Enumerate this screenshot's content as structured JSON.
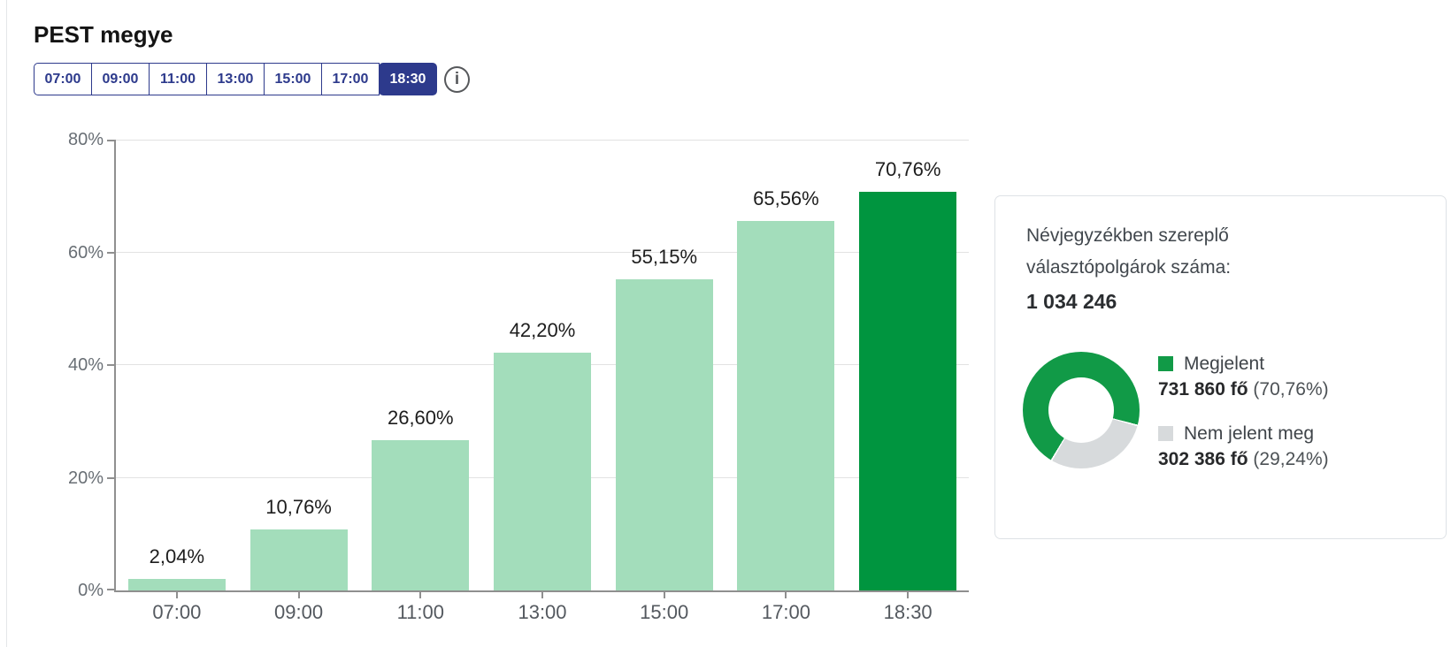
{
  "page": {
    "title": "PEST megye"
  },
  "time_selector": {
    "options": [
      "07:00",
      "09:00",
      "11:00",
      "13:00",
      "15:00",
      "17:00",
      "18:30"
    ],
    "selected": "18:30"
  },
  "info_icon": {
    "name": "info-icon",
    "glyph": "i"
  },
  "chart_data": [
    {
      "type": "bar",
      "title": "",
      "xlabel": "",
      "ylabel": "",
      "categories": [
        "07:00",
        "09:00",
        "11:00",
        "13:00",
        "15:00",
        "17:00",
        "18:30"
      ],
      "values": [
        2.04,
        10.76,
        26.6,
        42.2,
        55.15,
        65.56,
        70.76
      ],
      "value_labels": [
        "2,04%",
        "10,76%",
        "26,60%",
        "42,20%",
        "55,15%",
        "65,56%",
        "70,76%"
      ],
      "ylim": [
        0,
        80
      ],
      "y_ticks": [
        {
          "v": 0,
          "label": "0%"
        },
        {
          "v": 20,
          "label": "20%"
        },
        {
          "v": 40,
          "label": "40%"
        },
        {
          "v": 60,
          "label": "60%"
        },
        {
          "v": 80,
          "label": "80%"
        }
      ],
      "grid": true,
      "legend_position": "none",
      "colors": {
        "default": "#a3ddbb",
        "highlight": "#00953f"
      },
      "highlight_category": "18:30"
    },
    {
      "type": "pie",
      "donut": true,
      "labels": [
        "Megjelent",
        "Nem jelent meg"
      ],
      "values": [
        70.76,
        29.24
      ],
      "colors": [
        "#119a47",
        "#d7dadc"
      ],
      "legend_position": "right"
    }
  ],
  "summary_card": {
    "registered_line1": "Névjegyzékben szereplő",
    "registered_line2": "választópolgárok száma:",
    "registered_value": "1 034 246",
    "legend_values": [
      {
        "value": "731 860 fő",
        "percent": "(70,76%)"
      },
      {
        "value": "302 386 fő",
        "percent": "(29,24%)"
      }
    ]
  }
}
